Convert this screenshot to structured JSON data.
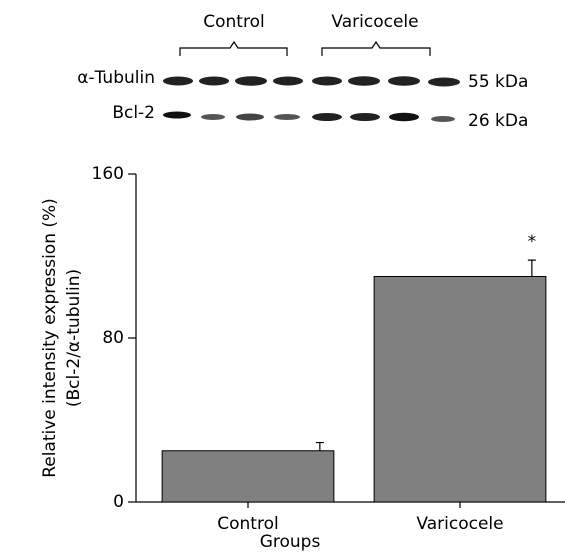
{
  "chart_data": {
    "type": "bar",
    "blot": {
      "groups": [
        "Control",
        "Varicocele"
      ],
      "rows": [
        {
          "label": "α-Tubulin",
          "size": "55 kDa"
        },
        {
          "label": "Bcl-2",
          "size": "26 kDa"
        }
      ]
    },
    "ylabel": [
      "Relative intensity expression (%)",
      "(Bcl-2/α-tubulin)"
    ],
    "xlabel": "Groups",
    "categories": [
      "Control",
      "Varicocele"
    ],
    "values": [
      25,
      110
    ],
    "errors": [
      4,
      8
    ],
    "annotations": [
      null,
      "*"
    ],
    "color": "#808080",
    "ylim": [
      0,
      160
    ],
    "yticks": [
      0,
      80,
      160
    ]
  }
}
